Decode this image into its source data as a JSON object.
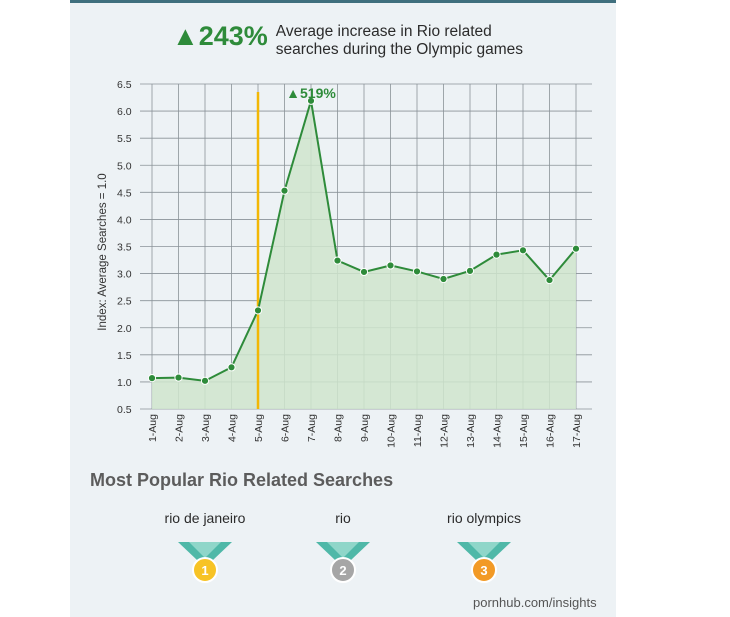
{
  "headline": {
    "increase": "▲243%",
    "description_line1": "Average increase in Rio related",
    "description_line2": "searches during the Olympic games"
  },
  "chart_data": {
    "type": "area",
    "ylabel": "Index: Average Searches = 1.0",
    "xlabel": "",
    "ylim": [
      0.5,
      6.5
    ],
    "yticks": [
      0.5,
      1.0,
      1.5,
      2.0,
      2.5,
      3.0,
      3.5,
      4.0,
      4.5,
      5.0,
      5.5,
      6.0,
      6.5
    ],
    "ytick_labels": [
      "0.5",
      "1.0",
      "1.5",
      "2.0",
      "2.5",
      "3.0",
      "3.5",
      "4.0",
      "4.5",
      "5.0",
      "5.5",
      "6.0",
      "6.5"
    ],
    "grid": true,
    "categories": [
      "1-Aug",
      "2-Aug",
      "3-Aug",
      "4-Aug",
      "5-Aug",
      "6-Aug",
      "7-Aug",
      "8-Aug",
      "9-Aug",
      "10-Aug",
      "11-Aug",
      "12-Aug",
      "13-Aug",
      "14-Aug",
      "15-Aug",
      "16-Aug",
      "17-Aug"
    ],
    "values": [
      1.07,
      1.08,
      1.02,
      1.27,
      2.32,
      4.53,
      6.19,
      3.24,
      3.03,
      3.15,
      3.04,
      2.9,
      3.05,
      3.35,
      3.43,
      2.88,
      3.46
    ],
    "marker_category": "5-Aug",
    "peak_annotation": {
      "category": "7-Aug",
      "text": "▲519%"
    },
    "colors": {
      "line": "#2e8b3a",
      "fill": "#cfe5cc",
      "marker": "#f2b705",
      "grid": "#8a9298"
    }
  },
  "popular": {
    "title": "Most Popular Rio Related Searches",
    "items": [
      {
        "term": "rio de janeiro",
        "rank": "1",
        "medal": "gold",
        "color": "#f7c325"
      },
      {
        "term": "rio",
        "rank": "2",
        "medal": "silver",
        "color": "#a6a6a6"
      },
      {
        "term": "rio olympics",
        "rank": "3",
        "medal": "bronze",
        "color": "#f29a26"
      }
    ]
  },
  "footer": "pornhub.com/insights"
}
